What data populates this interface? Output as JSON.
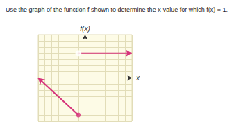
{
  "chart_data": {
    "type": "line",
    "title": "Use the graph of the function f shown to determine the x-value for which f(x) = 1.",
    "x_label": "x",
    "y_label": "f(x)",
    "xlim": [
      -7,
      7
    ],
    "ylim": [
      -7,
      7
    ],
    "xticks": [
      -7,
      -6,
      -5,
      -4,
      -3,
      -2,
      -1,
      0,
      1,
      2,
      3,
      4,
      5,
      6,
      7
    ],
    "yticks": [
      -7,
      -6,
      -5,
      -4,
      -3,
      -2,
      -1,
      0,
      1,
      2,
      3,
      4,
      5,
      6,
      7
    ],
    "grid": true,
    "tick_labels": false,
    "series": [
      {
        "type": "line",
        "color": "#d6337a",
        "x": [
          -7,
          -1
        ],
        "values": [
          0,
          -6
        ]
      },
      {
        "type": "scatter",
        "color": "#d6337a",
        "marker": "filled",
        "x": [
          -1
        ],
        "values": [
          -6
        ]
      },
      {
        "type": "line",
        "color": "#d6337a",
        "x": [
          -1,
          7
        ],
        "values": [
          4,
          4
        ]
      },
      {
        "type": "scatter",
        "color": "#d6337a",
        "marker": "open",
        "x": [
          -1
        ],
        "values": [
          4
        ]
      }
    ]
  }
}
